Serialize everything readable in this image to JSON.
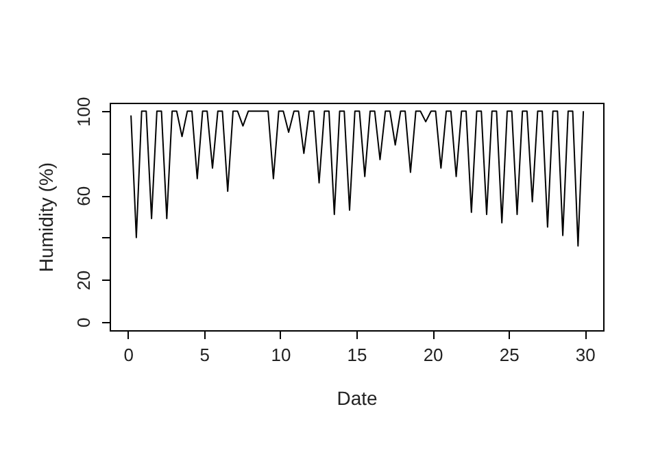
{
  "chart_data": {
    "type": "line",
    "xlabel": "Date",
    "ylabel": "Humidity (%)",
    "x": [
      0.2,
      0.55,
      0.9,
      1.2,
      1.55,
      1.9,
      2.2,
      2.55,
      2.9,
      3.2,
      3.55,
      3.9,
      4.2,
      4.55,
      4.9,
      5.2,
      5.55,
      5.9,
      6.2,
      6.55,
      6.9,
      7.2,
      7.55,
      7.9,
      8.2,
      8.55,
      8.9,
      9.2,
      9.55,
      9.9,
      10.2,
      10.55,
      10.9,
      11.2,
      11.55,
      11.9,
      12.2,
      12.55,
      12.9,
      13.2,
      13.55,
      13.9,
      14.2,
      14.55,
      14.9,
      15.2,
      15.55,
      15.9,
      16.2,
      16.55,
      16.9,
      17.2,
      17.55,
      17.9,
      18.2,
      18.55,
      18.9,
      19.2,
      19.55,
      19.9,
      20.2,
      20.55,
      20.9,
      21.2,
      21.55,
      21.9,
      22.2,
      22.55,
      22.9,
      23.2,
      23.55,
      23.9,
      24.2,
      24.55,
      24.9,
      25.2,
      25.55,
      25.9,
      26.2,
      26.55,
      26.9,
      27.2,
      27.55,
      27.9,
      28.2,
      28.55,
      28.9,
      29.2,
      29.55,
      29.9
    ],
    "series": [
      {
        "color": "#000000",
        "values": [
          98,
          40,
          100,
          100,
          49,
          100,
          100,
          49,
          100,
          100,
          88,
          100,
          100,
          68,
          100,
          100,
          73,
          100,
          100,
          62,
          100,
          100,
          93,
          100,
          100,
          100,
          100,
          100,
          68,
          100,
          100,
          90,
          100,
          100,
          80,
          100,
          100,
          66,
          100,
          100,
          51,
          100,
          100,
          53,
          100,
          100,
          69,
          100,
          100,
          77,
          100,
          100,
          84,
          100,
          100,
          71,
          100,
          100,
          95,
          100,
          100,
          73,
          100,
          100,
          69,
          100,
          100,
          52,
          100,
          100,
          51,
          100,
          100,
          47,
          100,
          100,
          51,
          100,
          100,
          57,
          100,
          100,
          45,
          100,
          100,
          41,
          100,
          100,
          36,
          100
        ]
      }
    ],
    "xlim": [
      -1.2,
      31.2
    ],
    "ylim": [
      -4,
      104
    ],
    "xticks": [
      0,
      5,
      10,
      15,
      20,
      25,
      30
    ],
    "yticks": [
      0,
      20,
      {
        "value": 40,
        "label": null
      },
      60,
      {
        "value": 80,
        "label": null
      },
      100
    ],
    "grid": false,
    "marker": "none",
    "line_style": "solid"
  }
}
